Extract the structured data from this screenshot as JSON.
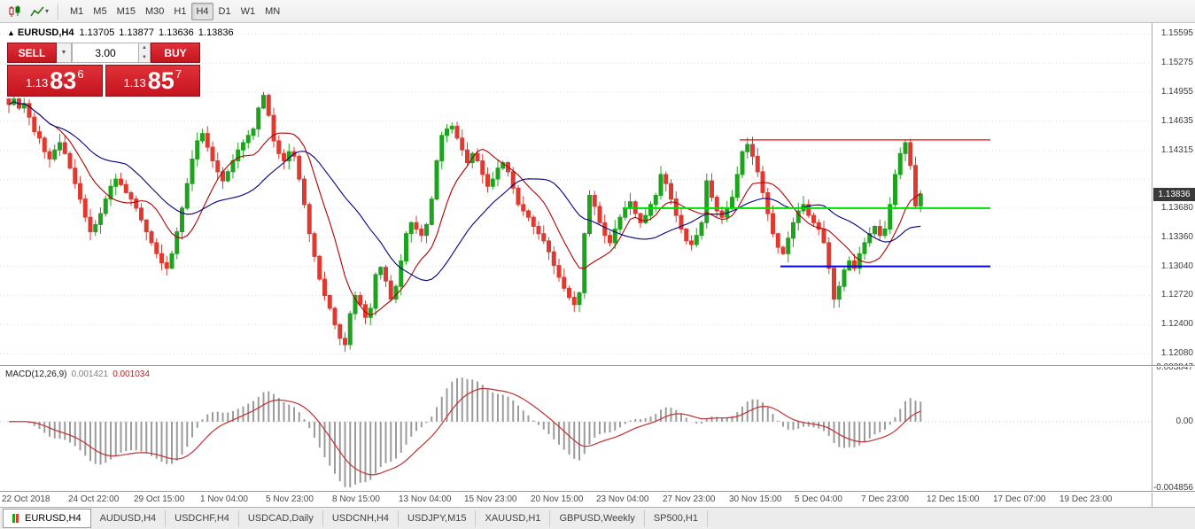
{
  "toolbar": {
    "timeframes": [
      {
        "label": "M1",
        "active": false
      },
      {
        "label": "M5",
        "active": false
      },
      {
        "label": "M15",
        "active": false
      },
      {
        "label": "M30",
        "active": false
      },
      {
        "label": "H1",
        "active": false
      },
      {
        "label": "H4",
        "active": true
      },
      {
        "label": "D1",
        "active": false
      },
      {
        "label": "W1",
        "active": false
      },
      {
        "label": "MN",
        "active": false
      }
    ]
  },
  "chart_header": {
    "collapse_glyph": "▲",
    "symbol": "EURUSD,H4",
    "open": "1.13705",
    "high": "1.13877",
    "low": "1.13636",
    "close": "1.13836"
  },
  "trade_panel": {
    "sell_label": "SELL",
    "buy_label": "BUY",
    "volume": "3.00",
    "volume_down_glyph": "▼",
    "volume_up_glyph": "▲",
    "sell_price": {
      "prefix": "1.13",
      "big": "83",
      "sup": "6"
    },
    "buy_price": {
      "prefix": "1.13",
      "big": "85",
      "sup": "7"
    }
  },
  "price_axis": {
    "labels": [
      "1.15595",
      "1.15275",
      "1.14955",
      "1.14635",
      "1.14315",
      "1.13680",
      "1.13360",
      "1.13040",
      "1.12720",
      "1.12400",
      "1.12080"
    ],
    "current_price": "1.13836"
  },
  "macd_label": {
    "name": "MACD(12,26,9)",
    "value_main": "0.001421",
    "value_signal": "0.001034"
  },
  "macd_axis": {
    "top": "0.003847",
    "zero": "0.00",
    "bottom": "-0.004856"
  },
  "time_axis": [
    "22 Oct 2018",
    "24 Oct 22:00",
    "29 Oct 15:00",
    "1 Nov 04:00",
    "5 Nov 23:00",
    "8 Nov 15:00",
    "13 Nov 04:00",
    "15 Nov 23:00",
    "20 Nov 15:00",
    "23 Nov 04:00",
    "27 Nov 23:00",
    "30 Nov 15:00",
    "5 Dec 04:00",
    "7 Dec 23:00",
    "12 Dec 15:00",
    "17 Dec 07:00",
    "19 Dec 23:00"
  ],
  "tabs": [
    {
      "label": "EURUSD,H4",
      "active": true
    },
    {
      "label": "AUDUSD,H4",
      "active": false
    },
    {
      "label": "USDCHF,H4",
      "active": false
    },
    {
      "label": "USDCAD,Daily",
      "active": false
    },
    {
      "label": "USDCNH,H4",
      "active": false
    },
    {
      "label": "USDJPY,M15",
      "active": false
    },
    {
      "label": "XAUUSD,H1",
      "active": false
    },
    {
      "label": "GBPUSD,Weekly",
      "active": false
    },
    {
      "label": "SP500,H1",
      "active": false
    }
  ],
  "chart_data": {
    "type": "candlestick",
    "title": "EURUSD,H4",
    "timeframe": "H4",
    "price_range": {
      "top": 1.15695,
      "bottom": 1.11975
    },
    "colors": {
      "up": "#1fa31f",
      "down": "#e03a30",
      "grid": "#dcdcdc"
    },
    "candles_close": [
      1.1482,
      1.1488,
      1.1478,
      1.1483,
      1.1468,
      1.1452,
      1.1445,
      1.143,
      1.1422,
      1.1432,
      1.144,
      1.1428,
      1.1412,
      1.1395,
      1.1378,
      1.1358,
      1.1342,
      1.135,
      1.1362,
      1.1378,
      1.1392,
      1.14,
      1.1394,
      1.1385,
      1.1378,
      1.1368,
      1.1355,
      1.1342,
      1.133,
      1.1318,
      1.1308,
      1.1302,
      1.1318,
      1.1342,
      1.1368,
      1.1395,
      1.1422,
      1.1442,
      1.145,
      1.1435,
      1.142,
      1.1408,
      1.1398,
      1.1408,
      1.142,
      1.1432,
      1.144,
      1.1448,
      1.1455,
      1.1478,
      1.1492,
      1.147,
      1.1442,
      1.1428,
      1.142,
      1.143,
      1.1425,
      1.14,
      1.1372,
      1.134,
      1.1315,
      1.129,
      1.1272,
      1.1258,
      1.124,
      1.1225,
      1.1218,
      1.1252,
      1.1272,
      1.1262,
      1.1248,
      1.1258,
      1.1295,
      1.1303,
      1.1288,
      1.1268,
      1.1282,
      1.131,
      1.134,
      1.1352,
      1.1345,
      1.1338,
      1.135,
      1.1378,
      1.142,
      1.1448,
      1.1455,
      1.1458,
      1.1445,
      1.1432,
      1.1418,
      1.1428,
      1.142,
      1.1405,
      1.1392,
      1.14,
      1.1412,
      1.1418,
      1.1408,
      1.139,
      1.1372,
      1.1365,
      1.1358,
      1.1348,
      1.134,
      1.1332,
      1.132,
      1.1305,
      1.1292,
      1.128,
      1.127,
      1.1262,
      1.1275,
      1.134,
      1.1382,
      1.137,
      1.1352,
      1.1338,
      1.133,
      1.1345,
      1.1358,
      1.1368,
      1.1375,
      1.1362,
      1.1352,
      1.136,
      1.1372,
      1.1382,
      1.1405,
      1.1395,
      1.1378,
      1.136,
      1.1345,
      1.1332,
      1.1328,
      1.1338,
      1.1352,
      1.1398,
      1.138,
      1.1365,
      1.1358,
      1.1368,
      1.138,
      1.1405,
      1.143,
      1.1438,
      1.1425,
      1.1408,
      1.1385,
      1.1362,
      1.134,
      1.1325,
      1.1318,
      1.1335,
      1.1352,
      1.1365,
      1.1372,
      1.136,
      1.1352,
      1.1345,
      1.133,
      1.1302,
      1.1268,
      1.1282,
      1.13,
      1.131,
      1.1302,
      1.1318,
      1.133,
      1.134,
      1.1348,
      1.1338,
      1.1345,
      1.1372,
      1.1405,
      1.1428,
      1.144,
      1.1415,
      1.13705,
      1.13836
    ],
    "last_candle": {
      "open": 1.13705,
      "high": 1.13877,
      "low": 1.13636,
      "close": 1.13836
    },
    "moving_averages": [
      {
        "period": 10,
        "color": "#b00000"
      },
      {
        "period": 24,
        "color": "#000080"
      }
    ],
    "horizontal_lines": [
      {
        "price": 1.1443,
        "color": "#ff0000",
        "start_index": 144,
        "width": 1.2
      },
      {
        "price": 1.1368,
        "color": "#00dd00",
        "start_index": 121,
        "width": 2
      },
      {
        "price": 1.1304,
        "color": "#0000e0",
        "start_index": 152,
        "width": 2
      }
    ],
    "macd": {
      "fast": 12,
      "slow": 26,
      "signal": 9,
      "histogram_color": "#9b9b9b",
      "signal_color": "#c03030",
      "axis_top": 0.003847,
      "axis_bottom": -0.004856,
      "current_macd": 0.001421,
      "current_signal": 0.001034
    }
  }
}
